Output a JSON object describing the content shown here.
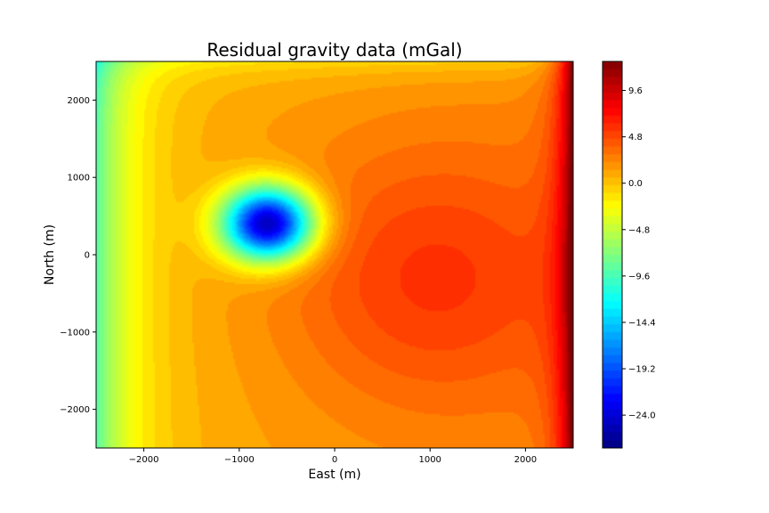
{
  "chart_data": {
    "type": "heatmap",
    "title": "Residual gravity data (mGal)",
    "xlabel": "East (m)",
    "ylabel": "North (m)",
    "xlim": [
      -2500,
      2500
    ],
    "ylim": [
      -2500,
      2500
    ],
    "x_ticks": [
      -2000,
      -1000,
      0,
      1000,
      2000
    ],
    "x_tick_labels": [
      "−2000",
      "−1000",
      "0",
      "1000",
      "2000"
    ],
    "y_ticks": [
      -2000,
      -1000,
      0,
      1000,
      2000
    ],
    "y_tick_labels": [
      "−2000",
      "−1000",
      "0",
      "1000",
      "2000"
    ],
    "colormap": "jet",
    "color_range": [
      -27.4,
      12.6
    ],
    "colorbar_ticks": [
      -24.0,
      -19.2,
      -14.4,
      -9.6,
      -4.8,
      0.0,
      4.8,
      9.6
    ],
    "colorbar_tick_labels": [
      "−24.0",
      "−19.2",
      "−14.4",
      "−9.6",
      "−4.8",
      "0.0",
      "4.8",
      "9.6"
    ],
    "features": {
      "negative_anomaly": {
        "east": -700,
        "north": 400,
        "min_value": -27
      },
      "positive_anomaly": {
        "east": 1000,
        "north": -300,
        "value": 4.5
      },
      "east_edge_max": 12
    },
    "grid": false
  }
}
